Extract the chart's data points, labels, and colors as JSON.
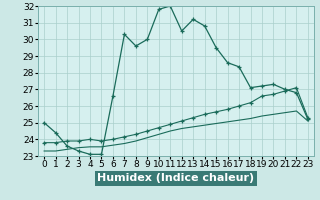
{
  "xlabel": "Humidex (Indice chaleur)",
  "bg_color": "#cce8e6",
  "plot_bg_color": "#d6f0ef",
  "line_color": "#1a6b5a",
  "grid_color": "#aacfcc",
  "xlabel_bg": "#5a8a85",
  "xlim": [
    -0.5,
    23.5
  ],
  "ylim": [
    23,
    32
  ],
  "xticks": [
    0,
    1,
    2,
    3,
    4,
    5,
    6,
    7,
    8,
    9,
    10,
    11,
    12,
    13,
    14,
    15,
    16,
    17,
    18,
    19,
    20,
    21,
    22,
    23
  ],
  "yticks": [
    23,
    24,
    25,
    26,
    27,
    28,
    29,
    30,
    31,
    32
  ],
  "curve1_x": [
    0,
    1,
    2,
    3,
    4,
    5,
    6,
    7,
    8,
    9,
    10,
    11,
    12,
    13,
    14,
    15,
    16,
    17,
    18,
    19,
    20,
    21,
    22,
    23
  ],
  "curve1_y": [
    25.0,
    24.4,
    23.6,
    23.3,
    23.1,
    23.1,
    26.6,
    30.3,
    29.6,
    30.0,
    31.8,
    32.0,
    30.5,
    31.2,
    30.8,
    29.5,
    28.6,
    28.35,
    27.1,
    27.2,
    27.3,
    27.0,
    26.8,
    25.2
  ],
  "curve2_x": [
    0,
    1,
    2,
    3,
    4,
    5,
    6,
    7,
    8,
    9,
    10,
    11,
    12,
    13,
    14,
    15,
    16,
    17,
    18,
    19,
    20,
    21,
    22,
    23
  ],
  "curve2_y": [
    23.8,
    23.8,
    23.9,
    23.9,
    24.0,
    23.9,
    24.0,
    24.15,
    24.3,
    24.5,
    24.7,
    24.9,
    25.1,
    25.3,
    25.5,
    25.65,
    25.8,
    26.0,
    26.2,
    26.6,
    26.7,
    26.9,
    27.1,
    25.3
  ],
  "curve3_x": [
    0,
    1,
    2,
    3,
    4,
    5,
    6,
    7,
    8,
    9,
    10,
    11,
    12,
    13,
    14,
    15,
    16,
    17,
    18,
    19,
    20,
    21,
    22,
    23
  ],
  "curve3_y": [
    23.3,
    23.3,
    23.4,
    23.5,
    23.55,
    23.55,
    23.65,
    23.75,
    23.9,
    24.1,
    24.3,
    24.5,
    24.65,
    24.75,
    24.85,
    24.95,
    25.05,
    25.15,
    25.25,
    25.4,
    25.5,
    25.6,
    25.7,
    25.1
  ],
  "xlabel_fontsize": 8,
  "tick_fontsize": 6.5
}
